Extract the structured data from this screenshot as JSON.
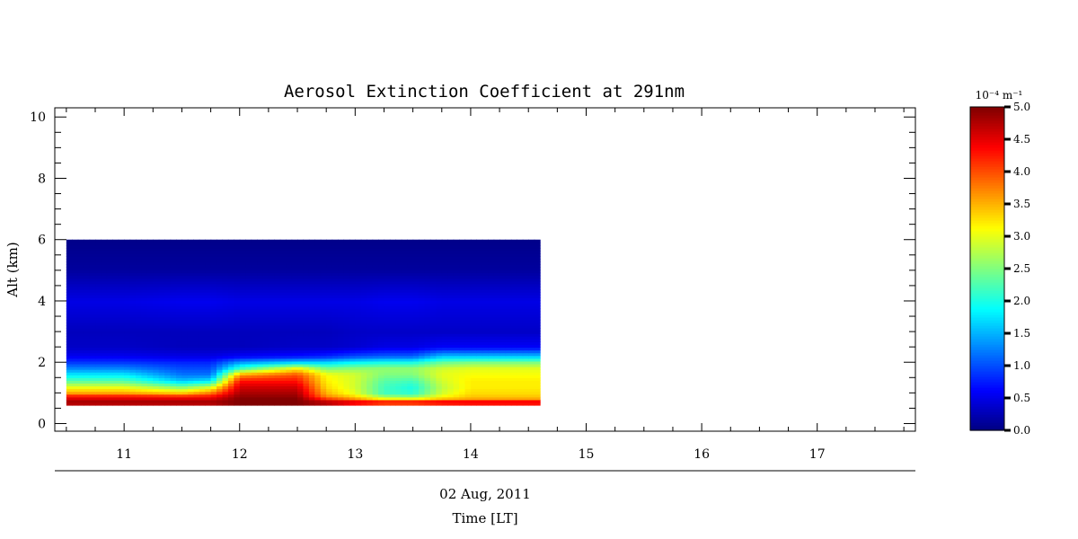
{
  "chart_data": {
    "type": "heatmap",
    "title": "Aerosol Extinction Coefficient at 291nm",
    "xlabel": "Time [LT]",
    "xsublabel": "02 Aug, 2011",
    "ylabel": "Alt (km)",
    "xlim": [
      10.4,
      17.85
    ],
    "ylim": [
      -0.25,
      10.3
    ],
    "x_ticks": [
      11,
      12,
      13,
      14,
      15,
      16,
      17
    ],
    "y_ticks": [
      0,
      2,
      4,
      6,
      8,
      10
    ],
    "data_extent": {
      "x": [
        10.5,
        14.6
      ],
      "y": [
        0.6,
        6.0
      ]
    },
    "colorbar": {
      "units": "10⁻⁴ m⁻¹",
      "range": [
        0.0,
        5.0
      ],
      "ticks": [
        "0.0",
        "0.5",
        "1.0",
        "1.5",
        "2.0",
        "2.5",
        "3.0",
        "3.5",
        "4.0",
        "4.5",
        "5.0"
      ],
      "colormap": "jet"
    },
    "field": {
      "x": [
        10.5,
        11.0,
        11.5,
        11.75,
        12.0,
        12.5,
        12.75,
        13.0,
        13.25,
        13.5,
        13.75,
        14.0,
        14.6
      ],
      "y": [
        0.6,
        0.7,
        0.8,
        0.9,
        1.0,
        1.2,
        1.4,
        1.6,
        1.8,
        2.0,
        2.2,
        2.5,
        3.0,
        4.0,
        5.0,
        6.0
      ],
      "z": [
        [
          4.6,
          4.6,
          4.6,
          4.6,
          5.0,
          5.0,
          4.6,
          4.0,
          3.6,
          3.6,
          3.8,
          3.9,
          3.9
        ],
        [
          4.9,
          4.9,
          4.9,
          4.9,
          5.0,
          5.0,
          4.9,
          4.8,
          4.7,
          4.7,
          4.8,
          4.8,
          4.8
        ],
        [
          4.6,
          4.6,
          4.6,
          4.6,
          5.0,
          5.0,
          4.2,
          3.7,
          3.2,
          3.2,
          3.5,
          3.6,
          3.6
        ],
        [
          4.3,
          4.3,
          4.2,
          4.3,
          4.9,
          4.9,
          3.7,
          3.3,
          2.6,
          2.5,
          3.1,
          3.4,
          3.4
        ],
        [
          3.6,
          3.6,
          3.4,
          3.8,
          4.8,
          4.8,
          3.5,
          3.0,
          2.2,
          2.1,
          2.9,
          3.3,
          3.3
        ],
        [
          3.0,
          3.0,
          2.5,
          2.9,
          4.6,
          4.6,
          3.3,
          2.9,
          2.2,
          2.0,
          2.8,
          3.2,
          3.2
        ],
        [
          2.3,
          2.3,
          1.6,
          1.8,
          4.3,
          4.3,
          3.2,
          2.9,
          2.3,
          2.2,
          2.9,
          3.2,
          3.2
        ],
        [
          1.8,
          1.8,
          1.2,
          1.2,
          3.6,
          4.0,
          3.1,
          2.9,
          2.5,
          2.5,
          3.0,
          3.1,
          3.1
        ],
        [
          1.3,
          1.3,
          1.0,
          1.0,
          2.2,
          3.2,
          2.5,
          2.6,
          2.6,
          2.6,
          2.9,
          3.0,
          3.0
        ],
        [
          0.9,
          0.9,
          0.8,
          0.8,
          1.4,
          1.7,
          1.7,
          1.9,
          2.0,
          2.0,
          2.4,
          2.5,
          2.5
        ],
        [
          0.55,
          0.55,
          0.5,
          0.5,
          0.6,
          0.7,
          0.8,
          1.0,
          1.1,
          1.1,
          1.6,
          1.6,
          1.6
        ],
        [
          0.35,
          0.35,
          0.3,
          0.3,
          0.3,
          0.35,
          0.35,
          0.4,
          0.5,
          0.5,
          0.6,
          0.6,
          0.6
        ],
        [
          0.3,
          0.3,
          0.3,
          0.3,
          0.3,
          0.3,
          0.3,
          0.35,
          0.35,
          0.35,
          0.35,
          0.35,
          0.35
        ],
        [
          0.5,
          0.5,
          0.55,
          0.55,
          0.5,
          0.5,
          0.5,
          0.5,
          0.55,
          0.55,
          0.5,
          0.5,
          0.5
        ],
        [
          0.15,
          0.15,
          0.15,
          0.15,
          0.15,
          0.15,
          0.15,
          0.15,
          0.15,
          0.15,
          0.15,
          0.15,
          0.15
        ],
        [
          0.05,
          0.05,
          0.05,
          0.05,
          0.05,
          0.05,
          0.05,
          0.05,
          0.05,
          0.05,
          0.05,
          0.05,
          0.05
        ]
      ]
    }
  }
}
